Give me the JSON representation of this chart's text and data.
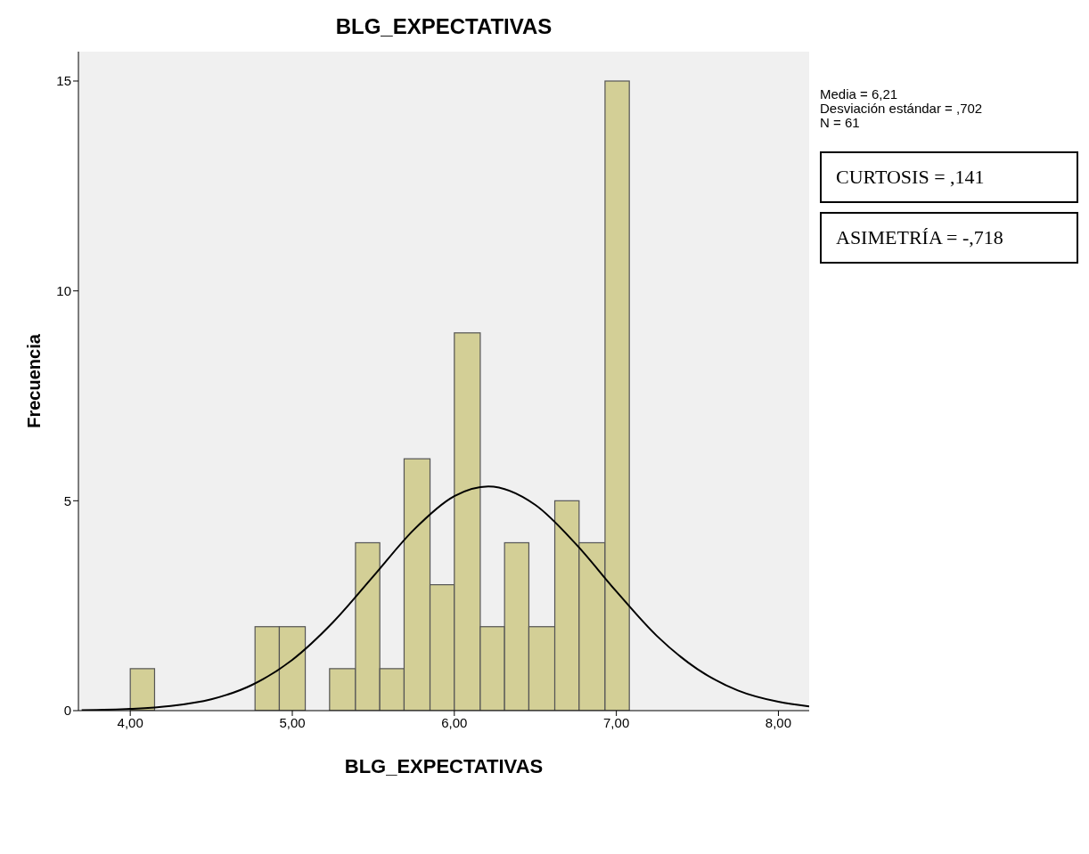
{
  "chart_data": {
    "type": "histogram",
    "title": "BLG_EXPECTATIVAS",
    "xlabel": "BLG_EXPECTATIVAS",
    "ylabel": "Frecuencia",
    "bins": [
      4.0,
      4.15,
      4.77,
      4.92,
      5.08,
      5.23,
      5.39,
      5.54,
      5.69,
      5.85,
      6.0,
      6.16,
      6.31,
      6.46,
      6.62,
      6.77,
      6.93,
      7.08
    ],
    "values": [
      1,
      0,
      2,
      2,
      0,
      1,
      4,
      1,
      6,
      3,
      9,
      2,
      4,
      2,
      5,
      4,
      15
    ],
    "color": "#d3cf96",
    "series": [
      {
        "type": "line",
        "color": "#000000",
        "x": [
          3.7,
          4.0,
          4.25,
          4.5,
          4.75,
          5.0,
          5.25,
          5.5,
          5.75,
          6.0,
          6.21,
          6.5,
          6.75,
          7.0,
          7.25,
          7.5,
          7.75,
          8.0,
          8.19
        ],
        "values": [
          0.01,
          0.04,
          0.11,
          0.27,
          0.61,
          1.21,
          2.1,
          3.2,
          4.31,
          5.11,
          5.34,
          4.9,
          3.97,
          2.84,
          1.78,
          0.99,
          0.48,
          0.21,
          0.1
        ]
      }
    ],
    "marker": "none",
    "line_style": "solid",
    "grid": false,
    "xlim": [
      3.68,
      8.19
    ],
    "xticks": [
      {
        "value": 4,
        "label": "4,00"
      },
      {
        "value": 5,
        "label": "5,00"
      },
      {
        "value": 6,
        "label": "6,00"
      },
      {
        "value": 7,
        "label": "7,00"
      },
      {
        "value": 8,
        "label": "8,00"
      }
    ],
    "ylim": [
      0,
      15.7
    ],
    "yticks": [
      0,
      5,
      10,
      15
    ],
    "annotations": [
      "Media = 6,21",
      "Desviación estándar = ,702",
      "N = 61",
      "CURTOSIS = ,141",
      "ASIMETRÍA = -,718"
    ]
  }
}
